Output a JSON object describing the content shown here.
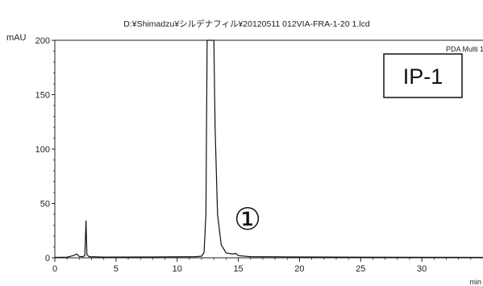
{
  "chart_data": {
    "type": "line",
    "title": "D:¥Shimadzu¥シルデナフィル¥20120511 012VIA-FRA-1-20 1.lcd",
    "ylabel": "mAU",
    "xlabel": "min",
    "detector_label": "PDA Multi 1",
    "sample_badge": "IP-1",
    "peak_marker": "①",
    "xlim": [
      0,
      35
    ],
    "ylim": [
      0,
      200
    ],
    "x_ticks": [
      0,
      5,
      10,
      15,
      20,
      25,
      30
    ],
    "y_ticks": [
      0,
      50,
      100,
      150,
      200
    ],
    "grid": false,
    "series": [
      {
        "values": [
          [
            0,
            0.4
          ],
          [
            1.0,
            0.6
          ],
          [
            1.5,
            2.0
          ],
          [
            1.8,
            3.5
          ],
          [
            2.0,
            1.2
          ],
          [
            2.3,
            1.0
          ],
          [
            2.45,
            2.0
          ],
          [
            2.55,
            34
          ],
          [
            2.62,
            3.0
          ],
          [
            2.8,
            1.0
          ],
          [
            4.0,
            0.7
          ],
          [
            8.0,
            0.8
          ],
          [
            11.5,
            1.0
          ],
          [
            12.0,
            1.5
          ],
          [
            12.2,
            5
          ],
          [
            12.35,
            40
          ],
          [
            12.45,
            200
          ],
          [
            13.0,
            200
          ],
          [
            13.1,
            120
          ],
          [
            13.3,
            40
          ],
          [
            13.6,
            12
          ],
          [
            14.0,
            4.5
          ],
          [
            14.5,
            3.5
          ],
          [
            14.8,
            4.0
          ],
          [
            15.0,
            2.0
          ],
          [
            16.0,
            1.0
          ],
          [
            20.0,
            0.8
          ],
          [
            25.0,
            0.6
          ],
          [
            30.0,
            0.5
          ],
          [
            35.0,
            0.4
          ]
        ]
      }
    ]
  }
}
